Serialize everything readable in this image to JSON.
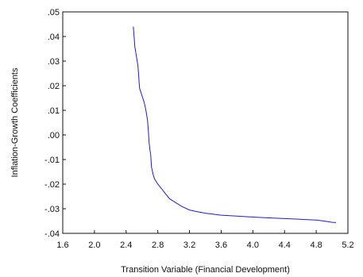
{
  "chart_data": {
    "type": "line",
    "title": "",
    "xlabel": "Transition Variable (Financial Development)",
    "ylabel": "Inflation-Growth Coefficients",
    "xlim": [
      1.6,
      5.2
    ],
    "ylim": [
      -0.04,
      0.05
    ],
    "x_ticks": [
      1.6,
      2.0,
      2.4,
      2.8,
      3.2,
      3.6,
      4.0,
      4.4,
      4.8,
      5.2
    ],
    "x_tick_labels": [
      "1.6",
      "2.0",
      "2.4",
      "2.8",
      "3.2",
      "3.6",
      "4.0",
      "4.4",
      "4.8",
      "5.2"
    ],
    "y_ticks": [
      -0.04,
      -0.03,
      -0.02,
      -0.01,
      0.0,
      0.01,
      0.02,
      0.03,
      0.04,
      0.05
    ],
    "y_tick_labels": [
      "-.04",
      "-.03",
      "-.02",
      "-.01",
      ".00",
      ".01",
      ".02",
      ".03",
      ".04",
      ".05"
    ],
    "grid": false,
    "line_color": "#1f1fbf",
    "series": [
      {
        "x": [
          2.49,
          2.5,
          2.51,
          2.52,
          2.53,
          2.55,
          2.57,
          2.58,
          2.6,
          2.63,
          2.65,
          2.67,
          2.68,
          2.69,
          2.7,
          2.71,
          2.72,
          2.74,
          2.76,
          2.8,
          2.85,
          2.9,
          2.95,
          3.0,
          3.05,
          3.1,
          3.2,
          3.3,
          3.4,
          3.6,
          3.8,
          4.0,
          4.2,
          4.4,
          4.6,
          4.8,
          4.9,
          5.0,
          5.05
        ],
        "y": [
          0.044,
          0.04,
          0.036,
          0.034,
          0.032,
          0.028,
          0.019,
          0.018,
          0.016,
          0.013,
          0.01,
          0.006,
          0.002,
          -0.003,
          -0.006,
          -0.008,
          -0.013,
          -0.016,
          -0.018,
          -0.02,
          -0.022,
          -0.024,
          -0.026,
          -0.027,
          -0.028,
          -0.029,
          -0.0305,
          -0.0312,
          -0.0318,
          -0.0326,
          -0.033,
          -0.0334,
          -0.0337,
          -0.034,
          -0.0343,
          -0.0346,
          -0.035,
          -0.0355,
          -0.0356
        ]
      }
    ]
  }
}
